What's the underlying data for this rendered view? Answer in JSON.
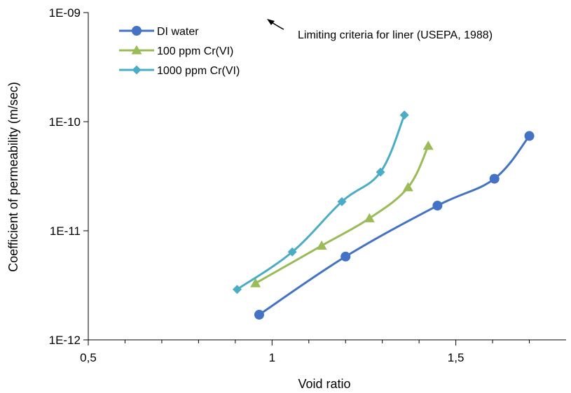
{
  "chart_data": {
    "type": "line",
    "xlabel": "Void ratio",
    "ylabel": "Coefficient of permeability (m/sec)",
    "xlim": [
      0.5,
      1.8
    ],
    "ylim": [
      1e-12,
      1e-09
    ],
    "yscale": "log",
    "x_ticks": [
      "0,5",
      "1",
      "1,5"
    ],
    "y_ticks": [
      "1E-12",
      "1E-11",
      "1E-10",
      "1E-09"
    ],
    "grid": false,
    "legend_position": "top-left",
    "annotation": "Limiting criteria for liner (USEPA, 1988)",
    "colors": {
      "di": "#4472c4",
      "p100": "#9bbb59",
      "p1000": "#4bacc6"
    },
    "series": [
      {
        "name": "DI water",
        "marker": "circle",
        "x": [
          0.965,
          1.2,
          1.45,
          1.605,
          1.7
        ],
        "y": [
          1.7e-12,
          5.8e-12,
          1.7e-11,
          3e-11,
          7.4e-11
        ]
      },
      {
        "name": "100 ppm Cr(VI)",
        "marker": "triangle",
        "x": [
          0.955,
          1.135,
          1.265,
          1.37,
          1.425
        ],
        "y": [
          3.3e-12,
          7.3e-12,
          1.3e-11,
          2.5e-11,
          6e-11
        ]
      },
      {
        "name": "1000 ppm Cr(VI)",
        "marker": "diamond",
        "x": [
          0.905,
          1.055,
          1.19,
          1.295,
          1.36
        ],
        "y": [
          2.9e-12,
          6.4e-12,
          1.85e-11,
          3.45e-11,
          1.15e-10
        ]
      }
    ]
  }
}
